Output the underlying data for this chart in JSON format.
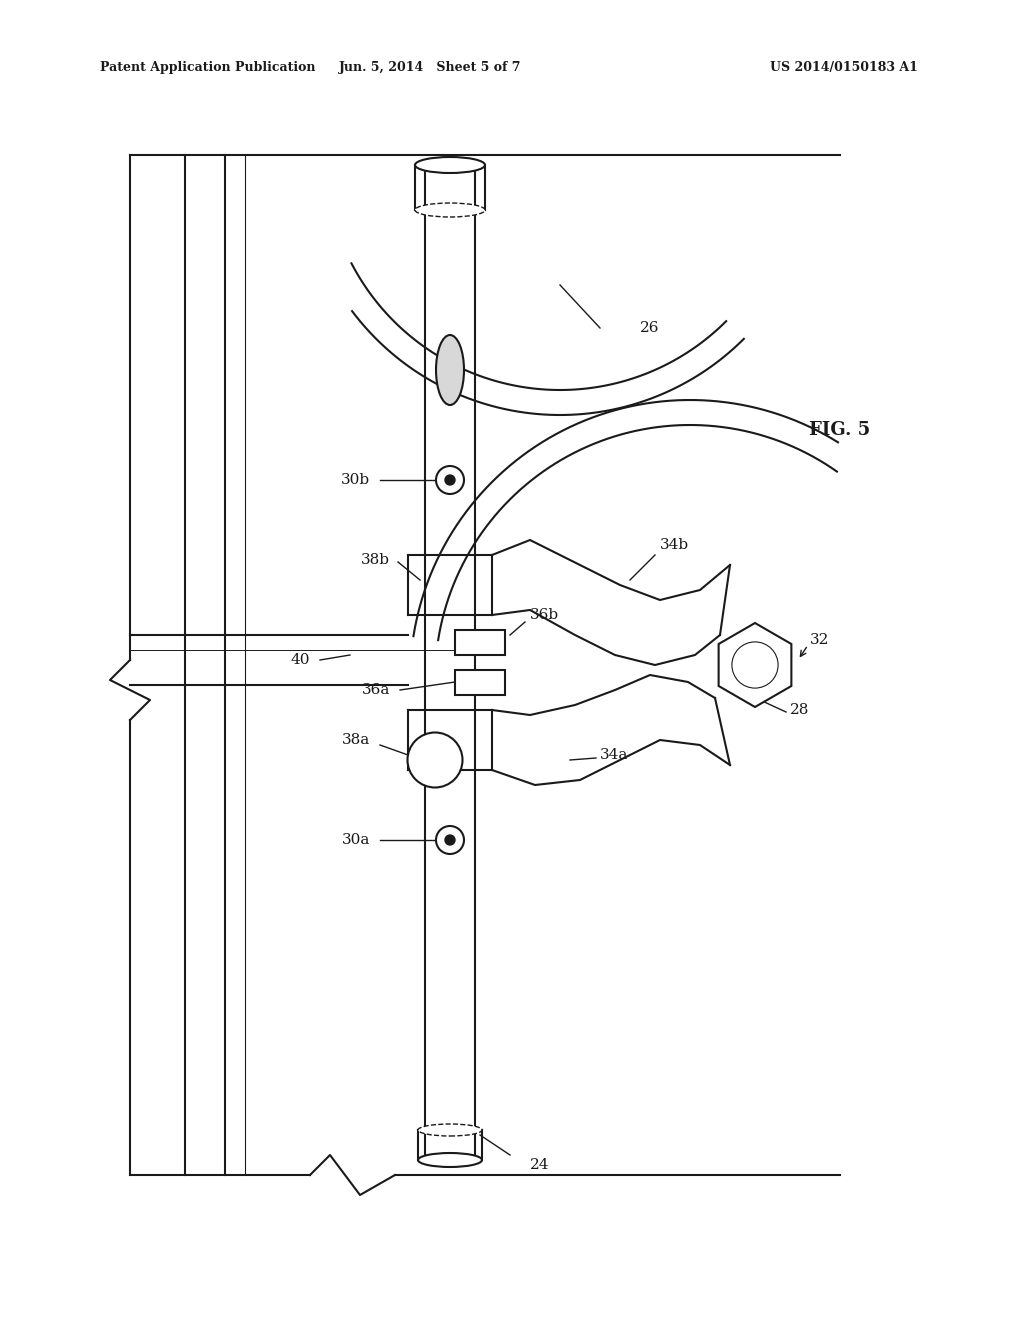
{
  "title_left": "Patent Application Publication",
  "title_center": "Jun. 5, 2014   Sheet 5 of 7",
  "title_right": "US 2014/0150183 A1",
  "fig_label": "FIG. 5",
  "background_color": "#ffffff",
  "line_color": "#1a1a1a"
}
